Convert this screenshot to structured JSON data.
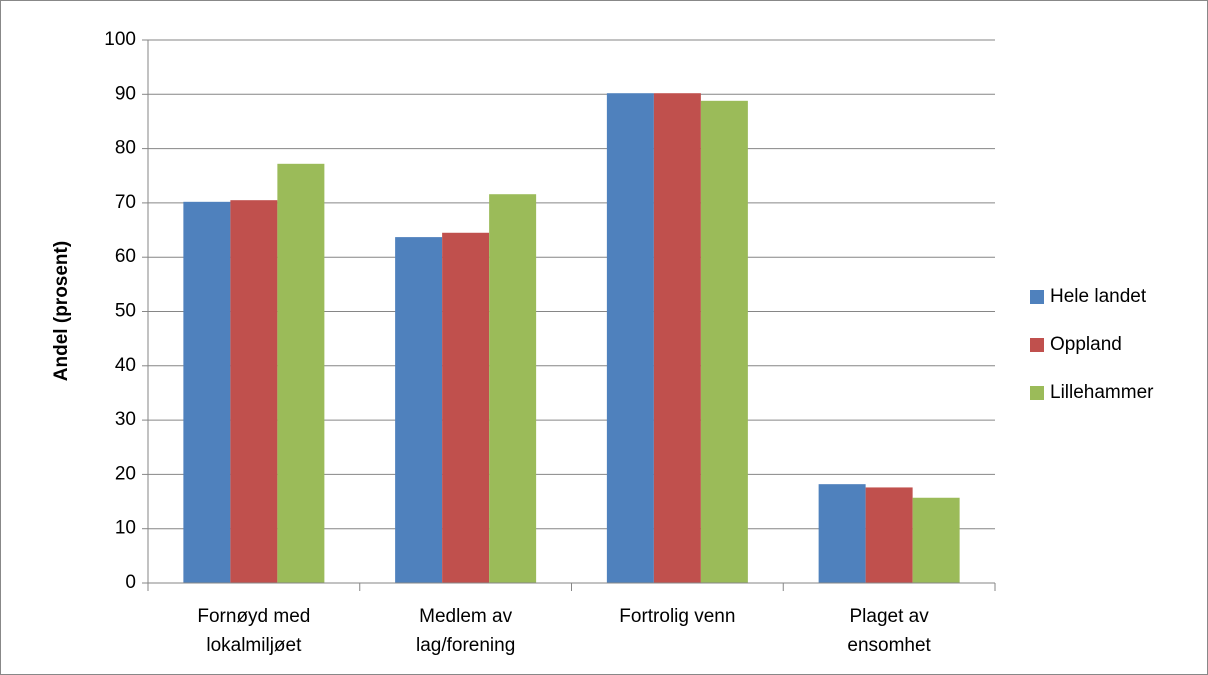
{
  "chart_data": {
    "type": "bar",
    "y_axis_label": "Andel (prosent)",
    "categories": [
      [
        "Fornøyd med",
        "lokalmiljøet"
      ],
      [
        "Medlem av",
        "lag/forening"
      ],
      [
        "Fortrolig venn"
      ],
      [
        "Plaget av",
        "ensomhet"
      ]
    ],
    "series": [
      {
        "name": "Hele landet",
        "color": "#4f81bd",
        "values": [
          70.2,
          63.7,
          90.2,
          18.2
        ]
      },
      {
        "name": "Oppland",
        "color": "#c0504d",
        "values": [
          70.5,
          64.5,
          90.2,
          17.6
        ]
      },
      {
        "name": "Lillehammer",
        "color": "#9bbb59",
        "values": [
          77.2,
          71.6,
          88.8,
          15.7
        ]
      }
    ],
    "ylim": [
      0,
      100
    ],
    "yticks": [
      0,
      10,
      20,
      30,
      40,
      50,
      60,
      70,
      80,
      90,
      100
    ],
    "grid": true,
    "legend": "right"
  }
}
